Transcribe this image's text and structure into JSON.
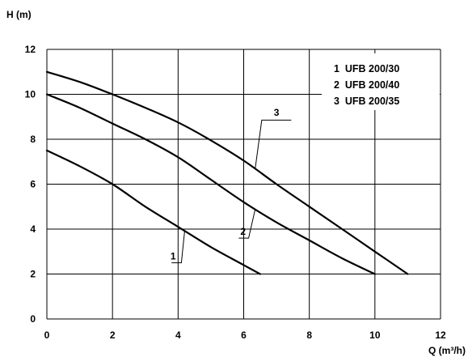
{
  "chart_data": {
    "type": "line",
    "xlabel": "Q (m³/h)",
    "ylabel": "H (m)",
    "xlim": [
      0,
      12
    ],
    "ylim": [
      0,
      12
    ],
    "xticks": [
      "0",
      "2",
      "4",
      "6",
      "8",
      "10",
      "12"
    ],
    "yticks": [
      "0",
      "2",
      "4",
      "6",
      "8",
      "10",
      "12"
    ],
    "grid": true,
    "legend_position": "top-right",
    "legend": [
      "1  UFB 200/30",
      "2  UFB 200/40",
      "3  UFB 200/35"
    ],
    "series": [
      {
        "name": "1",
        "x": [
          0,
          1,
          2,
          3,
          4,
          5,
          6,
          6.5
        ],
        "y": [
          7.5,
          6.8,
          6.0,
          5.0,
          4.1,
          3.2,
          2.4,
          2.0
        ]
      },
      {
        "name": "2",
        "x": [
          0,
          1,
          2,
          3,
          4,
          5,
          6,
          7,
          8,
          9,
          10
        ],
        "y": [
          10.0,
          9.4,
          8.7,
          8.0,
          7.2,
          6.2,
          5.2,
          4.3,
          3.5,
          2.7,
          2.0
        ]
      },
      {
        "name": "3",
        "x": [
          0,
          1,
          2,
          3,
          4,
          5,
          6,
          7,
          8,
          9,
          10,
          11
        ],
        "y": [
          11.0,
          10.55,
          10.0,
          9.4,
          8.75,
          7.95,
          7.05,
          6.0,
          5.0,
          4.0,
          3.0,
          2.0
        ]
      }
    ]
  }
}
